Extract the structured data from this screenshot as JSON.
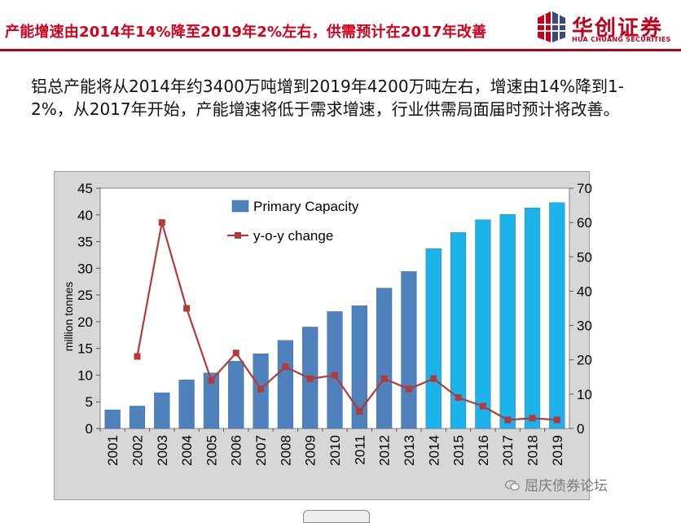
{
  "header": {
    "title": "产能增速由2014年14%降至2019年2%左右，供需预计在2017年改善",
    "logo_cn": "华创证券",
    "logo_en": "HUA CHUANG SECURITIES"
  },
  "body_text": "铝总产能将从2014年约3400万吨增到2019年4200万吨左右，增速由14%降到1-2%，从2017年开始，产能增速将低于需求增速，行业供需局面届时预计将改善。",
  "watermark": "屈庆债券论坛",
  "colors": {
    "accent_red": "#d6001c",
    "bar_hist": "#4f81bd",
    "bar_forecast": "#1cb3ea",
    "line": "#b23a3a",
    "plot_bg": "#ffffff",
    "frame_bg": "#d7d7d7"
  },
  "chart_data": {
    "type": "bar",
    "categories": [
      "2001",
      "2002",
      "2003",
      "2004",
      "2005",
      "2006",
      "2007",
      "2008",
      "2009",
      "2010",
      "2011",
      "2012",
      "2013",
      "2014",
      "2015",
      "2016",
      "2017",
      "2018",
      "2019"
    ],
    "series": [
      {
        "name": "Primary Capacity",
        "type": "bar",
        "axis": "left",
        "values": [
          3.5,
          4.2,
          6.7,
          9.1,
          10.4,
          12.6,
          14.0,
          16.5,
          19.0,
          21.9,
          23.0,
          26.3,
          29.4,
          33.7,
          36.7,
          39.1,
          40.1,
          41.3,
          42.3
        ],
        "forecast_from": "2014"
      },
      {
        "name": "y-o-y change",
        "type": "line",
        "axis": "right",
        "values": [
          null,
          21,
          60,
          35,
          14,
          22,
          11.5,
          18,
          14.5,
          15.5,
          5,
          14.5,
          11.5,
          14.5,
          9,
          6.5,
          2.5,
          3,
          2.5
        ]
      }
    ],
    "ylabel": "million tonnes",
    "xlabel": "",
    "ylim": [
      0,
      45
    ],
    "yticks": [
      0,
      5,
      10,
      15,
      20,
      25,
      30,
      35,
      40,
      45
    ],
    "y2lim": [
      0,
      70
    ],
    "y2ticks": [
      0,
      10,
      20,
      30,
      40,
      50,
      60,
      70
    ],
    "grid": false,
    "legend_position": "top-left"
  }
}
